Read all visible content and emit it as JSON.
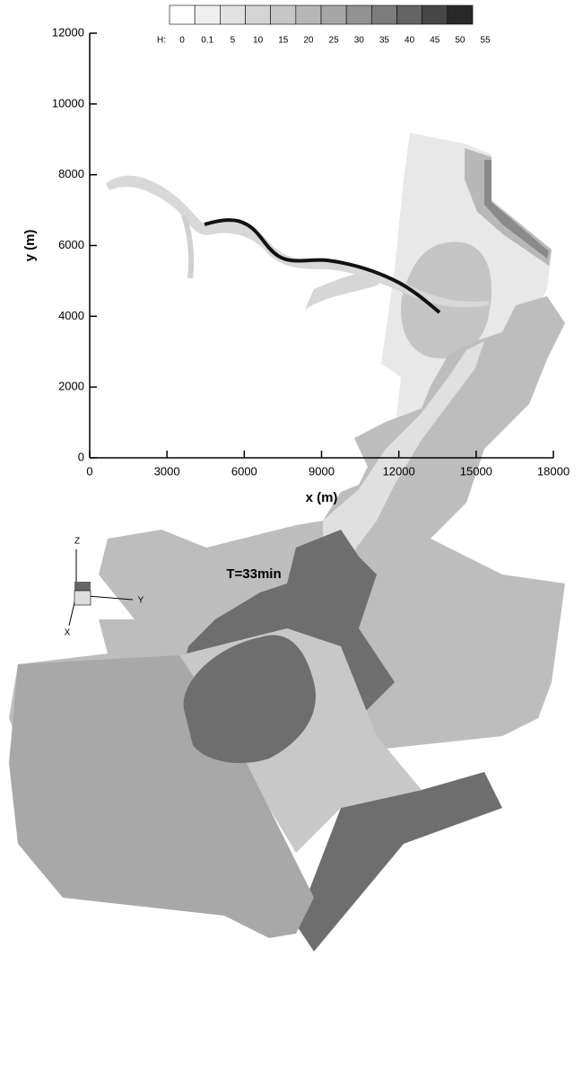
{
  "chart_data": [
    {
      "type": "contour",
      "xlabel": "x (m)",
      "ylabel": "y (m)",
      "xlim": [
        0,
        18000
      ],
      "ylim": [
        0,
        12000
      ],
      "xticks": [
        0,
        3000,
        6000,
        9000,
        12000,
        15000,
        18000
      ],
      "yticks": [
        0,
        2000,
        4000,
        6000,
        8000,
        10000,
        12000
      ],
      "colorbar": {
        "label": "H:",
        "levels": [
          0,
          0.1,
          5,
          10,
          15,
          20,
          25,
          30,
          35,
          40,
          45,
          50,
          55
        ],
        "colors": [
          "#ffffff",
          "#f0f0f0",
          "#e2e2e2",
          "#d4d4d4",
          "#c6c6c6",
          "#b6b6b6",
          "#a6a6a6",
          "#929292",
          "#7c7c7c",
          "#646464",
          "#464646",
          "#282828"
        ]
      }
    },
    {
      "type": "surface3d",
      "annotation": "T=33min",
      "xlabel": "X",
      "ylabel": "Y",
      "zlabel": "Z"
    }
  ]
}
